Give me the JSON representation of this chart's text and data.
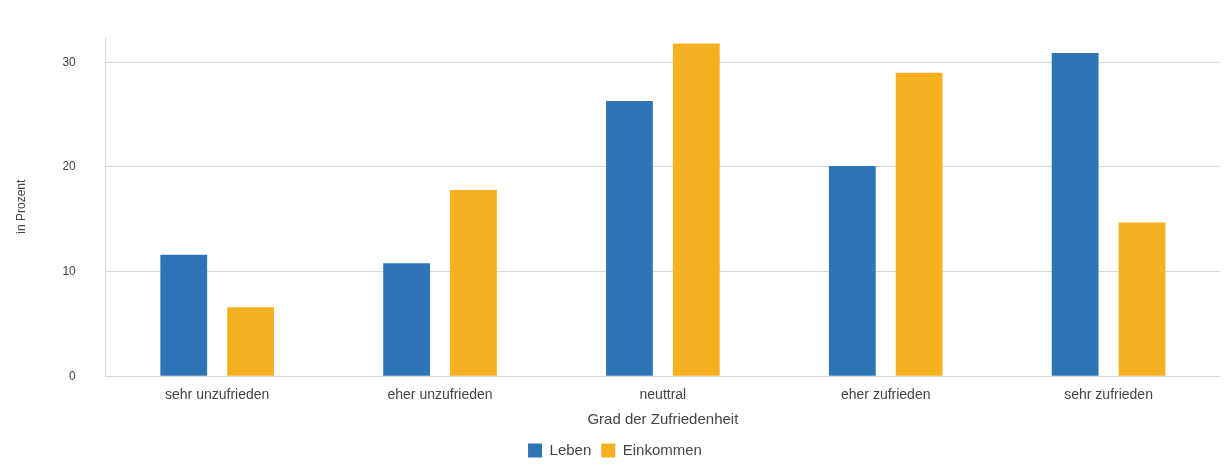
{
  "chart_data": {
    "type": "bar",
    "xlabel": "Grad der Zufriedenheit",
    "ylabel": "in Prozent",
    "categories": [
      "sehr unzufrieden",
      "eher unzufrieden",
      "neuttral",
      "eher zufrieden",
      "sehr zufrieden"
    ],
    "series": [
      {
        "name": "Leben",
        "color": "#2e75b6",
        "values": [
          11.6,
          10.8,
          26.3,
          20.1,
          30.9
        ]
      },
      {
        "name": "Einkommen",
        "color": "#f5b120",
        "values": [
          6.6,
          17.8,
          31.8,
          29.0,
          14.7
        ]
      }
    ],
    "ylim": [
      0,
      32.4
    ],
    "yticks": [
      0,
      10,
      20,
      30
    ],
    "grid": "y",
    "legend": "bottom"
  }
}
